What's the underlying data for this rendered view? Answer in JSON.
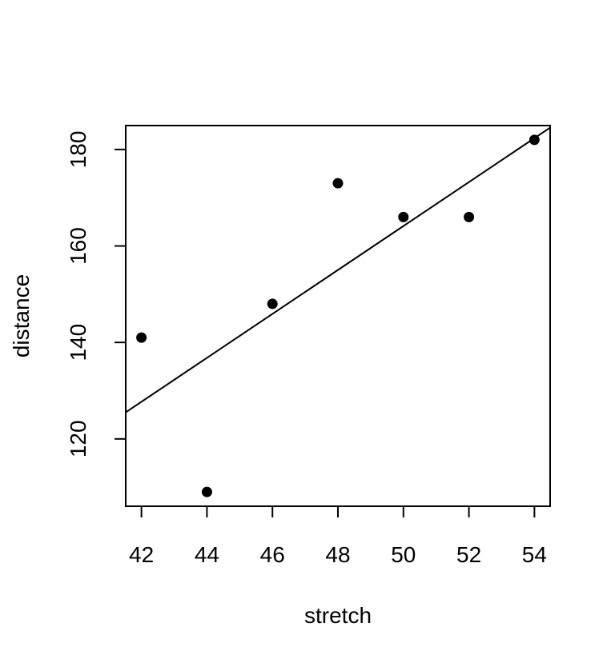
{
  "chart_data": {
    "type": "scatter",
    "title": "",
    "xlabel": "stretch",
    "ylabel": "distance",
    "xlim": [
      41.52,
      54.48
    ],
    "ylim": [
      106.04,
      184.96
    ],
    "x_ticks": [
      42,
      44,
      46,
      48,
      50,
      52,
      54
    ],
    "y_ticks": [
      120,
      140,
      160,
      180
    ],
    "grid": false,
    "points": [
      {
        "x": 42,
        "y": 141
      },
      {
        "x": 44,
        "y": 109
      },
      {
        "x": 46,
        "y": 148
      },
      {
        "x": 48,
        "y": 173
      },
      {
        "x": 50,
        "y": 166
      },
      {
        "x": 52,
        "y": 166
      },
      {
        "x": 54,
        "y": 182
      }
    ],
    "fit_line": {
      "intercept": -63.571,
      "slope": 4.554
    }
  }
}
